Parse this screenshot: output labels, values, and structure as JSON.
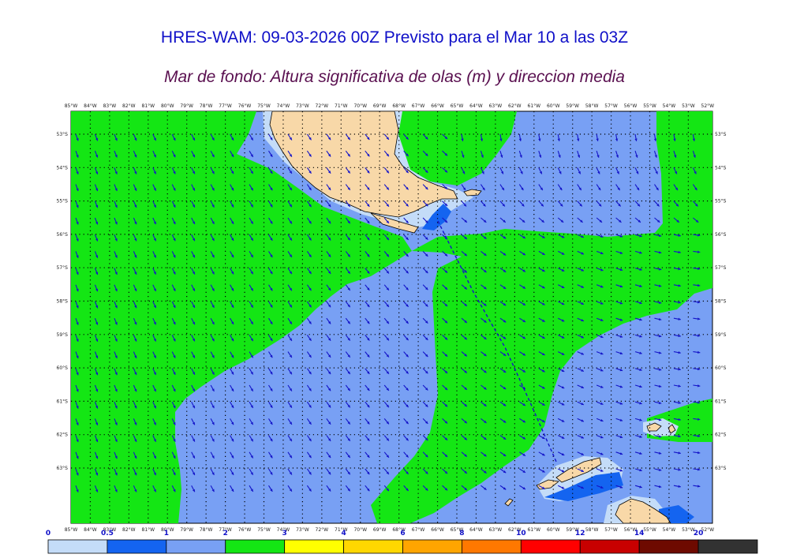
{
  "title": "HRES-WAM: 09-03-2026 00Z Previsto para el Mar 10 a las 03Z",
  "subtitle": "Mar de fondo: Altura significativa de olas (m) y direccion media",
  "longitude_labels": [
    "85°W",
    "84°W",
    "83°W",
    "82°W",
    "81°W",
    "80°W",
    "79°W",
    "78°W",
    "77°W",
    "76°W",
    "75°W",
    "74°W",
    "73°W",
    "72°W",
    "71°W",
    "70°W",
    "69°W",
    "68°W",
    "67°W",
    "66°W",
    "65°W",
    "64°W",
    "63°W",
    "62°W",
    "61°W",
    "60°W",
    "59°W",
    "58°W",
    "57°W",
    "56°W",
    "55°W",
    "54°W",
    "53°W",
    "52°W"
  ],
  "latitude_labels": [
    "53°S",
    "54°S",
    "55°S",
    "56°S",
    "57°S",
    "58°S",
    "59°S",
    "60°S",
    "61°S",
    "62°S",
    "63°S"
  ],
  "colorbar": {
    "labels": [
      "0",
      "0.5",
      "1",
      "2",
      "3",
      "4",
      "6",
      "8",
      "10",
      "12",
      "14",
      "20"
    ],
    "colors": [
      "#c4dcf8",
      "#1464f0",
      "#78a0f4",
      "#14e614",
      "#ffff00",
      "#ffd700",
      "#ffa500",
      "#ff7800",
      "#ff0000",
      "#c80000",
      "#6e0a00",
      "#323232"
    ]
  },
  "legend_colors": {
    "land": "#f8d8a8",
    "coast": "#000000",
    "swell_0_5": "#c4dcf8",
    "swell_0_5_1": "#1464f0",
    "swell_1_2": "#78a0f4",
    "swell_2_3": "#14e614",
    "arrows": "#1414c8"
  }
}
